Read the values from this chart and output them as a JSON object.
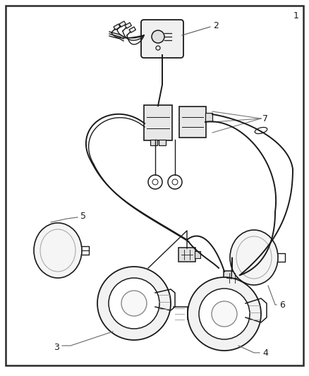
{
  "bg_color": "#ffffff",
  "border_color": "#2a2a2a",
  "line_color": "#1a1a1a",
  "label_color": "#1a1a1a",
  "fig_width": 4.38,
  "fig_height": 5.33,
  "dpi": 100
}
